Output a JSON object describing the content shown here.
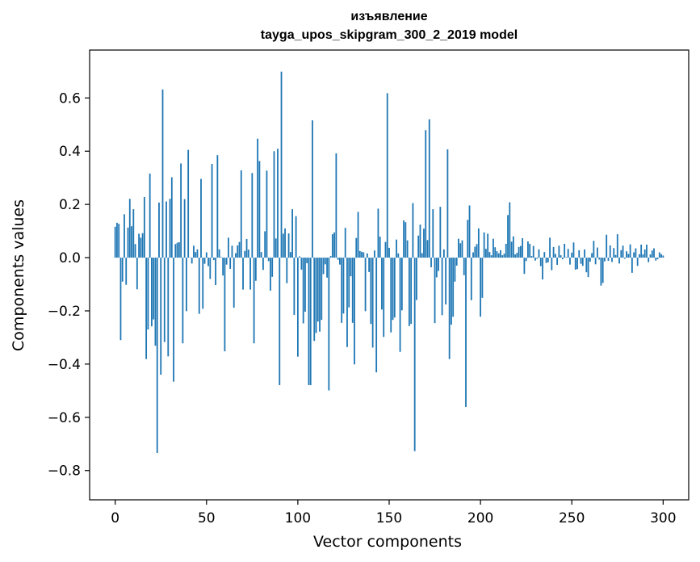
{
  "chart_data": {
    "type": "bar",
    "title": [
      "изъявление",
      "tayga_upos_skipgram_300_2_2019 model"
    ],
    "xlabel": "Vector components",
    "ylabel": "Components values",
    "xlim": [
      -14,
      314
    ],
    "ylim": [
      -0.91,
      0.78
    ],
    "xticks": [
      0,
      50,
      100,
      150,
      200,
      250,
      300
    ],
    "yticks": [
      0.6,
      0.4,
      0.2,
      0.0,
      -0.2,
      -0.4,
      -0.6,
      -0.8
    ],
    "ytick_labels": [
      "0.6",
      "0.4",
      "0.2",
      "0.0",
      "−0.2",
      "−0.4",
      "−0.6",
      "−0.8"
    ],
    "bar_color": "#1f77b4",
    "grid": false,
    "legend": "none",
    "x": "components 0..299 (index)",
    "values": [
      0.116,
      0.131,
      0.127,
      -0.31,
      -0.09,
      0.163,
      -0.102,
      0.113,
      0.221,
      0.118,
      0.182,
      0.051,
      -0.119,
      0.09,
      0.075,
      0.092,
      0.228,
      -0.381,
      -0.27,
      0.316,
      -0.258,
      -0.232,
      -0.331,
      -0.734,
      0.207,
      -0.44,
      0.632,
      -0.317,
      0.211,
      -0.371,
      0.221,
      0.302,
      -0.466,
      0.051,
      0.056,
      0.058,
      0.354,
      -0.322,
      0.22,
      -0.201,
      0.405,
      0.001,
      -0.022,
      0.045,
      0.021,
      0.031,
      -0.211,
      0.296,
      -0.192,
      -0.023,
      0.02,
      -0.032,
      -0.08,
      0.352,
      -0.009,
      -0.103,
      0.385,
      0.031,
      0.002,
      -0.067,
      -0.352,
      -0.026,
      0.075,
      -0.042,
      0.045,
      -0.188,
      0.017,
      0.046,
      0.059,
      0.328,
      -0.12,
      0.025,
      0.07,
      0.03,
      -0.12,
      0.318,
      -0.322,
      -0.087,
      0.447,
      0.363,
      0.021,
      -0.046,
      0.099,
      0.327,
      -0.013,
      -0.124,
      -0.072,
      0.4,
      0.072,
      0.409,
      -0.479,
      0.699,
      0.09,
      0.11,
      -0.096,
      0.091,
      0.021,
      0.182,
      -0.215,
      0.156,
      -0.372,
      0.005,
      -0.045,
      -0.247,
      -0.203,
      -0.021,
      -0.479,
      -0.479,
      0.516,
      -0.313,
      -0.283,
      -0.24,
      -0.278,
      -0.234,
      -0.062,
      -0.025,
      -0.075,
      -0.499,
      0.006,
      0.088,
      0.095,
      0.392,
      -0.008,
      -0.026,
      -0.245,
      -0.21,
      0.112,
      -0.336,
      -0.187,
      -0.07,
      -0.245,
      -0.401,
      0.074,
      0.172,
      0.025,
      0.022,
      0.02,
      -0.201,
      0.016,
      -0.054,
      -0.249,
      -0.338,
      0.027,
      -0.431,
      0.184,
      0.079,
      -0.195,
      -0.298,
      0.059,
      0.618,
      0.037,
      -0.281,
      -0.234,
      -0.225,
      0.068,
      0.016,
      -0.354,
      -0.198,
      0.14,
      0.133,
      0.065,
      -0.257,
      -0.249,
      0.205,
      -0.727,
      -0.159,
      0.083,
      0.124,
      0.017,
      0.109,
      0.479,
      0.066,
      0.52,
      -0.036,
      0.182,
      -0.246,
      -0.074,
      -0.05,
      0.191,
      -0.216,
      0.031,
      -0.176,
      0.407,
      -0.381,
      -0.252,
      -0.222,
      -0.09,
      -0.03,
      0.071,
      0.054,
      0.065,
      -0.066,
      -0.561,
      0.142,
      0.196,
      -0.16,
      0.02,
      0.041,
      0.051,
      0.11,
      -0.222,
      -0.151,
      0.095,
      0.033,
      0.09,
      0.021,
      0.009,
      0.071,
      0.039,
      0.024,
      0.016,
      0.028,
      0.009,
      0.015,
      0.052,
      0.16,
      0.208,
      0.06,
      0.08,
      0.012,
      0.018,
      0.04,
      0.044,
      0.073,
      -0.061,
      -0.013,
      0.061,
      0.052,
      0.006,
      0.044,
      -0.011,
      -0.004,
      0.031,
      -0.032,
      -0.082,
      0.021,
      -0.02,
      -0.018,
      0.075,
      -0.047,
      0.04,
      0.014,
      -0.027,
      0.045,
      0.009,
      -0.006,
      0.052,
      0.002,
      0.033,
      -0.026,
      0.019,
      0.057,
      -0.045,
      -0.043,
      0.028,
      -0.023,
      -0.031,
      0.031,
      -0.055,
      -0.073,
      -0.015,
      0.017,
      0.063,
      -0.025,
      0.038,
      -0.007,
      -0.105,
      -0.095,
      -0.014,
      0.086,
      -0.012,
      0.046,
      -0.016,
      0.036,
      0.01,
      0.088,
      -0.022,
      0.028,
      0.045,
      -0.004,
      0.024,
      0.014,
      0.05,
      -0.057,
      0.02,
      0.035,
      -0.031,
      0.013,
      0.049,
      0.012,
      0.031,
      0.049,
      -0.017,
      0.012,
      0.027,
      0.035,
      -0.011,
      -0.006,
      0.02,
      0.013,
      0.008
    ]
  }
}
